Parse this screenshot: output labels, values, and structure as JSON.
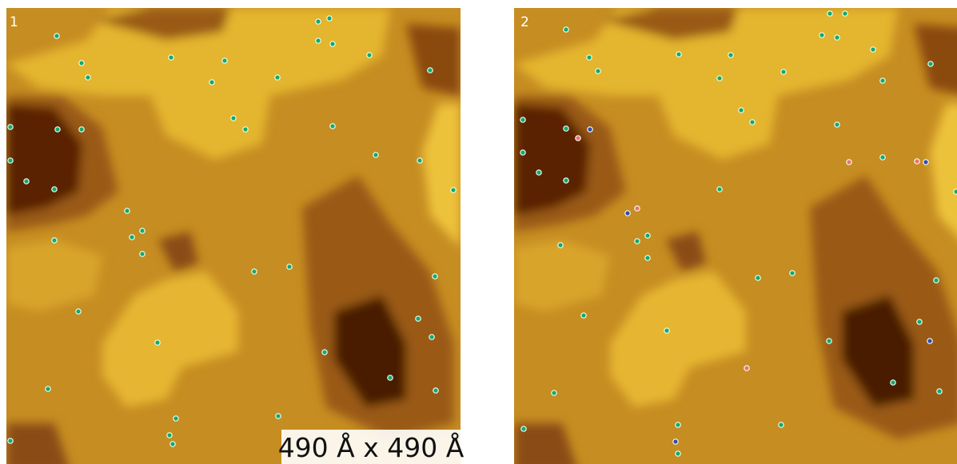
{
  "panels": [
    {
      "label": "1"
    },
    {
      "label": "2"
    }
  ],
  "scale_label": "490 Å x 490 Å"
}
